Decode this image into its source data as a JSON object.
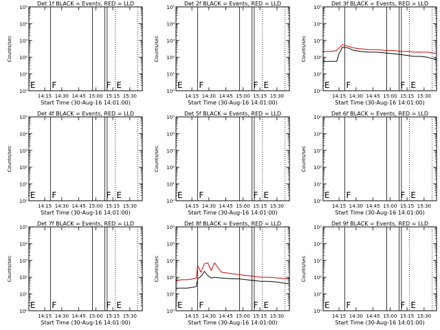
{
  "axes": {
    "xlabel": "Start Time (30-Aug-16 14:01:00)",
    "ylabel": "Counts/sec",
    "xticks": [
      "14:15",
      "14:30",
      "14:45",
      "15:00",
      "15:15",
      "15:30"
    ],
    "xtick_minutes": [
      14,
      29,
      44,
      59,
      74,
      89
    ],
    "yticks": [
      "10⁰",
      "10¹",
      "10²",
      "10³",
      "10⁴",
      "10⁵"
    ],
    "xlim": [
      0,
      100
    ],
    "ylim_log10": [
      0,
      5
    ],
    "markers": [
      {
        "label": "E",
        "minute": 0,
        "style": "dotted"
      },
      {
        "label": "F",
        "minute": 19,
        "style": "solid"
      },
      {
        "label": "",
        "minute": 56,
        "style": "solid"
      },
      {
        "label": "F",
        "minute": 67,
        "style": "solid"
      },
      {
        "label": "",
        "minute": 69,
        "style": "solid"
      },
      {
        "label": "E",
        "minute": 76,
        "style": "dotted"
      },
      {
        "label": "",
        "minute": 96,
        "style": "dotted"
      }
    ]
  },
  "chart_data": [
    {
      "type": "line",
      "title": "Det 1f BLACK = Events, RED = LLD",
      "series": []
    },
    {
      "type": "line",
      "title": "Det 2f BLACK = Events, RED = LLD",
      "series": []
    },
    {
      "type": "line",
      "title": "Det 3f BLACK = Events, RED = LLD",
      "series": [
        {
          "color": "#000000",
          "x": [
            0,
            4,
            8,
            12,
            14,
            17,
            22,
            27,
            33,
            40,
            47,
            55,
            62,
            69,
            75,
            80,
            86,
            92,
            97,
            100
          ],
          "y": [
            1.75,
            1.75,
            1.75,
            1.75,
            2.2,
            2.6,
            2.55,
            2.4,
            2.35,
            2.3,
            2.3,
            2.25,
            2.2,
            2.15,
            2.1,
            2.05,
            2.05,
            2.0,
            1.9,
            1.85
          ]
        },
        {
          "color": "#cc0000",
          "x": [
            0,
            4,
            8,
            12,
            14,
            17,
            22,
            27,
            33,
            40,
            47,
            55,
            62,
            69,
            75,
            80,
            86,
            92,
            97,
            100
          ],
          "y": [
            2.35,
            2.35,
            2.35,
            2.4,
            2.55,
            2.75,
            2.65,
            2.55,
            2.5,
            2.45,
            2.45,
            2.4,
            2.4,
            2.35,
            2.35,
            2.3,
            2.3,
            2.3,
            2.25,
            2.2
          ]
        }
      ]
    },
    {
      "type": "line",
      "title": "Det 4f BLACK = Events, RED = LLD",
      "series": []
    },
    {
      "type": "line",
      "title": "Det 5f BLACK = Events, RED = LLD",
      "series": []
    },
    {
      "type": "line",
      "title": "Det 6f BLACK = Events, RED = LLD",
      "series": []
    },
    {
      "type": "line",
      "title": "Det 7f BLACK = Events, RED = LLD",
      "series": []
    },
    {
      "type": "line",
      "title": "Det 8f BLACK = Events, RED = LLD",
      "series": [
        {
          "color": "#000000",
          "x": [
            0,
            5,
            10,
            15,
            18,
            19,
            22,
            25,
            28,
            31,
            34,
            40,
            50,
            56,
            62,
            69,
            75,
            82,
            90,
            100
          ],
          "y": [
            1.35,
            1.35,
            1.35,
            1.4,
            1.45,
            1.9,
            2.05,
            2.35,
            2.1,
            1.95,
            2.0,
            1.95,
            1.9,
            1.9,
            1.85,
            1.8,
            1.75,
            1.75,
            1.7,
            1.6
          ]
        },
        {
          "color": "#cc0000",
          "x": [
            0,
            5,
            10,
            15,
            18,
            19,
            22,
            25,
            28,
            31,
            34,
            40,
            50,
            56,
            62,
            69,
            75,
            82,
            90,
            100
          ],
          "y": [
            1.8,
            1.85,
            1.85,
            1.9,
            1.95,
            2.7,
            2.3,
            2.8,
            2.85,
            2.4,
            2.85,
            2.3,
            2.2,
            2.15,
            2.1,
            2.05,
            2.0,
            2.0,
            1.95,
            1.9
          ]
        }
      ]
    },
    {
      "type": "line",
      "title": "Det 9f BLACK = Events, RED = LLD",
      "series": []
    }
  ]
}
